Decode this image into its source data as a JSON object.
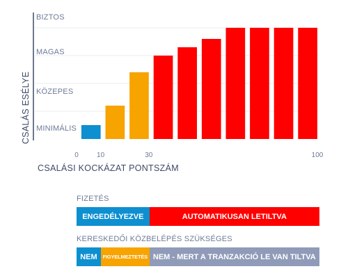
{
  "chart_data": {
    "type": "bar",
    "ylabel": "CSALÁS ESÉLYE",
    "xlabel": "CSALÁSI KOCKÁZAT PONTSZÁM",
    "xlim": [
      0,
      100
    ],
    "x_ticks": [
      "0",
      "10",
      "30",
      "100"
    ],
    "x_tick_values": [
      0,
      10,
      30,
      100
    ],
    "y_levels": [
      "MINIMÁLIS",
      "KÖZEPES",
      "MAGAS",
      "BIZTOS"
    ],
    "ylim": [
      0,
      4
    ],
    "grid": true,
    "bars": [
      {
        "x_start": 2,
        "x_end": 10,
        "value": 0.5,
        "color": "#0d8fd0"
      },
      {
        "x_start": 12,
        "x_end": 20,
        "value": 1.2,
        "color": "#f7a300"
      },
      {
        "x_start": 22,
        "x_end": 30,
        "value": 2.4,
        "color": "#f7a300"
      },
      {
        "x_start": 32,
        "x_end": 40,
        "value": 3.0,
        "color": "#ff0000"
      },
      {
        "x_start": 42,
        "x_end": 50,
        "value": 3.3,
        "color": "#ff0000"
      },
      {
        "x_start": 52,
        "x_end": 60,
        "value": 3.6,
        "color": "#ff0000"
      },
      {
        "x_start": 62,
        "x_end": 70,
        "value": 4.0,
        "color": "#ff0000"
      },
      {
        "x_start": 72,
        "x_end": 80,
        "value": 4.0,
        "color": "#ff0000"
      },
      {
        "x_start": 82,
        "x_end": 90,
        "value": 4.0,
        "color": "#ff0000"
      },
      {
        "x_start": 92,
        "x_end": 100,
        "value": 4.0,
        "color": "#ff0000"
      }
    ],
    "colors": {
      "blue": "#0d8fd0",
      "orange": "#f7a300",
      "red": "#ff0000",
      "gray": "#8f9bb8",
      "grid": "#e8ebf1",
      "axis": "#3d4a66"
    }
  },
  "payment": {
    "title": "FIZETÉS",
    "segments": [
      {
        "label": "ENGEDÉLYEZVE",
        "x_start": 0,
        "x_end": 30,
        "color": "#0d8fd0"
      },
      {
        "label": "AUTOMATIKUSAN LETILTVA",
        "x_start": 30,
        "x_end": 100,
        "color": "#ff0000"
      }
    ]
  },
  "merchant": {
    "title": "KERESKEDŐI KÖZBELÉPÉS SZÜKSÉGES",
    "segments": [
      {
        "label": "NEM",
        "x_start": 0,
        "x_end": 10,
        "color": "#0d8fd0"
      },
      {
        "label": "FIGYELMEZTETÉS",
        "x_start": 10,
        "x_end": 30,
        "color": "#f7a300"
      },
      {
        "label": "NEM - MERT A TRANZAKCIÓ LE VAN TILTVA",
        "x_start": 30,
        "x_end": 100,
        "color": "#8f9bb8"
      }
    ]
  }
}
